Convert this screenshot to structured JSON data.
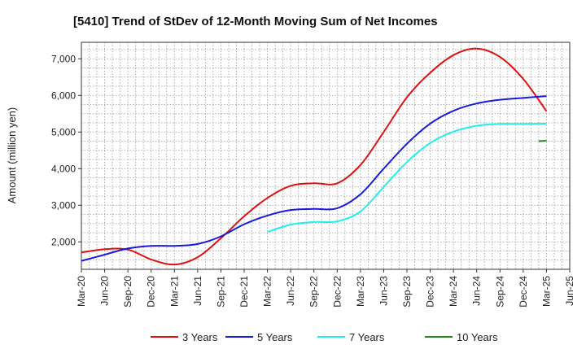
{
  "chart_data": {
    "type": "line",
    "title": "[5410]  Trend of StDev of 12-Month Moving Sum of Net Incomes",
    "ylabel": "Amount (million yen)",
    "xlabel": "",
    "ylim": [
      1250,
      7450
    ],
    "y_ticks": [
      2000,
      3000,
      4000,
      5000,
      6000,
      7000
    ],
    "y_tick_labels": [
      "2,000",
      "3,000",
      "4,000",
      "5,000",
      "6,000",
      "7,000"
    ],
    "x_ticks": [
      "Mar-20",
      "Jun-20",
      "Sep-20",
      "Dec-20",
      "Mar-21",
      "Jun-21",
      "Sep-21",
      "Dec-21",
      "Mar-22",
      "Jun-22",
      "Sep-22",
      "Dec-22",
      "Mar-23",
      "Jun-23",
      "Sep-23",
      "Dec-23",
      "Mar-24",
      "Jun-24",
      "Sep-24",
      "Dec-24",
      "Mar-25",
      "Jun-25"
    ],
    "grid": true,
    "legend_position": "bottom",
    "series": [
      {
        "name": "3 Years",
        "color": "#dd1111",
        "points": [
          [
            "Mar-20",
            1710
          ],
          [
            "Jun-20",
            1800
          ],
          [
            "Sep-20",
            1790
          ],
          [
            "Dec-20",
            1520
          ],
          [
            "Mar-21",
            1380
          ],
          [
            "Jun-21",
            1580
          ],
          [
            "Sep-21",
            2100
          ],
          [
            "Dec-21",
            2700
          ],
          [
            "Mar-22",
            3200
          ],
          [
            "Jun-22",
            3530
          ],
          [
            "Sep-22",
            3600
          ],
          [
            "Dec-22",
            3600
          ],
          [
            "Mar-23",
            4100
          ],
          [
            "Jun-23",
            5000
          ],
          [
            "Sep-23",
            5950
          ],
          [
            "Dec-23",
            6620
          ],
          [
            "Mar-24",
            7100
          ],
          [
            "Jun-24",
            7280
          ],
          [
            "Sep-24",
            7050
          ],
          [
            "Dec-24",
            6450
          ],
          [
            "Mar-25",
            5570
          ]
        ]
      },
      {
        "name": "5 Years",
        "color": "#1a1ad8",
        "points": [
          [
            "Mar-20",
            1480
          ],
          [
            "Jun-20",
            1650
          ],
          [
            "Sep-20",
            1820
          ],
          [
            "Dec-20",
            1890
          ],
          [
            "Mar-21",
            1890
          ],
          [
            "Jun-21",
            1940
          ],
          [
            "Sep-21",
            2150
          ],
          [
            "Dec-21",
            2480
          ],
          [
            "Mar-22",
            2720
          ],
          [
            "Jun-22",
            2870
          ],
          [
            "Sep-22",
            2900
          ],
          [
            "Dec-22",
            2920
          ],
          [
            "Mar-23",
            3300
          ],
          [
            "Jun-23",
            4000
          ],
          [
            "Sep-23",
            4680
          ],
          [
            "Dec-23",
            5230
          ],
          [
            "Mar-24",
            5580
          ],
          [
            "Jun-24",
            5780
          ],
          [
            "Sep-24",
            5880
          ],
          [
            "Dec-24",
            5930
          ],
          [
            "Mar-25",
            5980
          ]
        ]
      },
      {
        "name": "7 Years",
        "color": "#22eeee",
        "points": [
          [
            "Mar-22",
            2270
          ],
          [
            "Jun-22",
            2470
          ],
          [
            "Sep-22",
            2540
          ],
          [
            "Dec-22",
            2560
          ],
          [
            "Mar-23",
            2830
          ],
          [
            "Jun-23",
            3500
          ],
          [
            "Sep-23",
            4180
          ],
          [
            "Dec-23",
            4700
          ],
          [
            "Mar-24",
            5010
          ],
          [
            "Jun-24",
            5170
          ],
          [
            "Sep-24",
            5220
          ],
          [
            "Dec-24",
            5220
          ],
          [
            "Mar-25",
            5230
          ]
        ]
      },
      {
        "name": "10 Years",
        "color": "#228822",
        "points": [
          [
            "Feb-25",
            4750
          ],
          [
            "Mar-25",
            4760
          ]
        ]
      }
    ]
  }
}
